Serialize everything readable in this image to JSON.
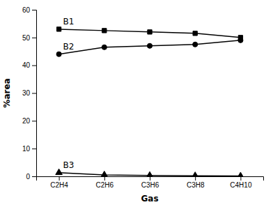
{
  "chart_data": {
    "type": "line",
    "categories": [
      "C2H4",
      "C2H6",
      "C3H6",
      "C3H8",
      "C4H10"
    ],
    "series": [
      {
        "name": "B1",
        "color": "#000000",
        "marker": "square",
        "values": [
          53.0,
          52.5,
          52.0,
          51.5,
          50.0
        ]
      },
      {
        "name": "B2",
        "color": "#000000",
        "marker": "circle",
        "values": [
          44.0,
          46.5,
          47.0,
          47.5,
          49.0
        ]
      },
      {
        "name": "B3",
        "color": "#000000",
        "marker": "triangle",
        "values": [
          1.3,
          0.5,
          0.3,
          0.2,
          0.1
        ]
      }
    ],
    "xlabel": "Gas",
    "ylabel": "%area",
    "ylim": [
      0,
      60
    ],
    "yticks": [
      0,
      10,
      20,
      30,
      40,
      50,
      60
    ],
    "grid": false
  }
}
